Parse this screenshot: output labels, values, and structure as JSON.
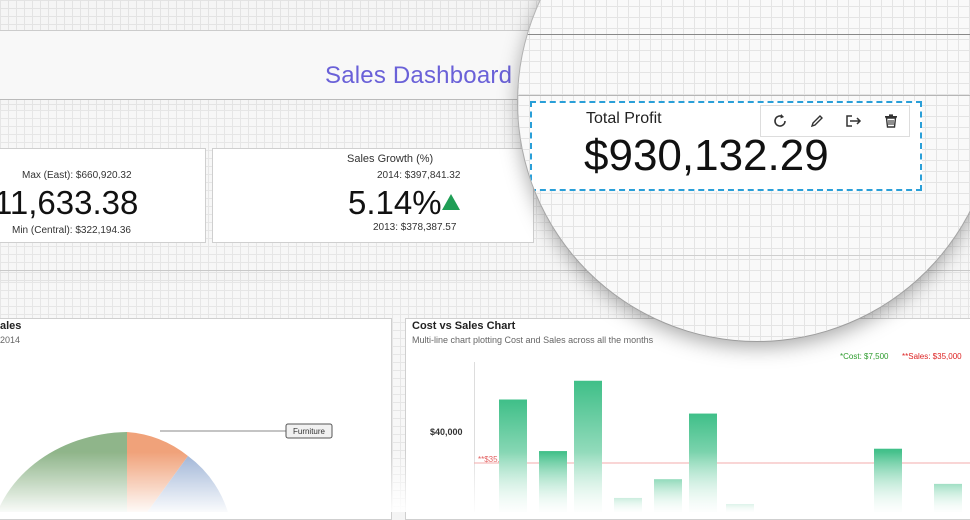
{
  "dashboard": {
    "title": "Sales Dashboard"
  },
  "kpis": {
    "sales_total": {
      "value": "11,633.38",
      "max": "Max (East): $660,920.32",
      "min": "Min (Central): $322,194.36"
    },
    "sales_growth": {
      "label": "Sales Growth (%)",
      "value": "5.14%",
      "y2014": "2014: $397,841.32",
      "y2013": "2013: $378,387.57",
      "trend_color": "#1f9e55"
    }
  },
  "left_chart": {
    "title": "ales",
    "subtitle": "2014",
    "callout": "Furniture"
  },
  "chart_data": {
    "type": "bar",
    "title": "Cost vs Sales Chart",
    "subtitle": "Multi-line chart plotting Cost and Sales across all the months",
    "legend": {
      "cost": "*Cost: $7,500",
      "sales": "**Sales: $35,000"
    },
    "ytick": "$40,000",
    "reference_line": {
      "label": "**$35,000",
      "value": 35000
    },
    "values": [
      44000,
      33000,
      48000,
      23000,
      27000,
      41000,
      20000,
      33500,
      26000
    ],
    "ylim": [
      20000,
      52000
    ]
  },
  "magnifier": {
    "widget_label": "Total Profit",
    "widget_value": "$930,132.29",
    "tools": [
      "refresh-icon",
      "edit-icon",
      "export-icon",
      "delete-icon"
    ]
  }
}
